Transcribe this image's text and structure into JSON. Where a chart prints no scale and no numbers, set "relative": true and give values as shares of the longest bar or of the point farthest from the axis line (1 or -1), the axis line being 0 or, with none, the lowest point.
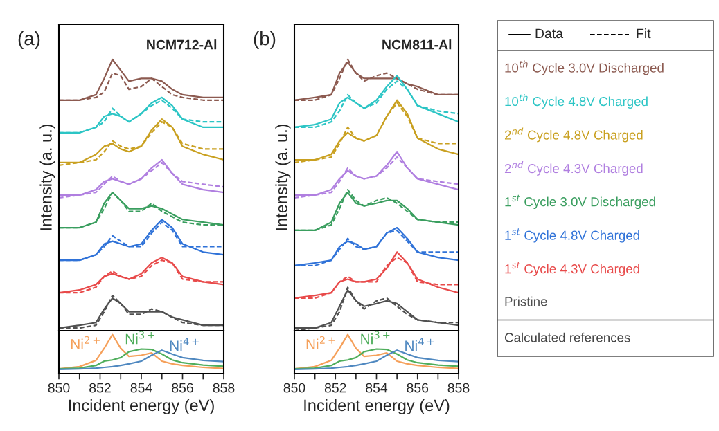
{
  "chart_data": [
    {
      "type": "line",
      "title": "(a)",
      "subtitle": "NCM712-Al",
      "ylabel": "Intensity (a. u.)",
      "relative": true,
      "xlim": [
        850,
        858
      ],
      "tick_labels": false,
      "marker": "none",
      "legend": false,
      "x": [
        850,
        851,
        851.8,
        852.2,
        852.6,
        853.0,
        853.4,
        854.0,
        854.5,
        855.0,
        855.5,
        856.0,
        857.0,
        858.0
      ],
      "series": [
        {
          "color": "#8c5a50",
          "line_style": "solid",
          "values": [
            0.85,
            0.85,
            0.87,
            0.93,
            1.0,
            0.96,
            0.92,
            0.93,
            0.93,
            0.92,
            0.89,
            0.87,
            0.86,
            0.86
          ]
        },
        {
          "color": "#8c5a50",
          "line_style": "dashed",
          "values": [
            0.85,
            0.85,
            0.86,
            0.88,
            0.95,
            0.94,
            0.89,
            0.9,
            0.93,
            0.9,
            0.87,
            0.86,
            0.85,
            0.85
          ]
        },
        {
          "color": "#2cc5c5",
          "line_style": "solid",
          "values": [
            0.73,
            0.73,
            0.75,
            0.79,
            0.8,
            0.79,
            0.77,
            0.8,
            0.84,
            0.86,
            0.83,
            0.78,
            0.75,
            0.75
          ]
        },
        {
          "color": "#2cc5c5",
          "line_style": "dashed",
          "values": [
            0.73,
            0.73,
            0.75,
            0.77,
            0.82,
            0.79,
            0.77,
            0.8,
            0.83,
            0.85,
            0.82,
            0.78,
            0.77,
            0.77
          ]
        },
        {
          "color": "#c9a020",
          "line_style": "solid",
          "values": [
            0.62,
            0.62,
            0.65,
            0.68,
            0.69,
            0.67,
            0.66,
            0.68,
            0.74,
            0.78,
            0.75,
            0.68,
            0.65,
            0.63
          ]
        },
        {
          "color": "#c9a020",
          "line_style": "dashed",
          "values": [
            0.61,
            0.62,
            0.63,
            0.66,
            0.7,
            0.68,
            0.67,
            0.68,
            0.73,
            0.77,
            0.75,
            0.69,
            0.67,
            0.67
          ]
        },
        {
          "color": "#b07fe0",
          "line_style": "solid",
          "values": [
            0.5,
            0.5,
            0.52,
            0.55,
            0.56,
            0.55,
            0.54,
            0.56,
            0.6,
            0.63,
            0.58,
            0.54,
            0.52,
            0.51
          ]
        },
        {
          "color": "#b07fe0",
          "line_style": "dashed",
          "values": [
            0.49,
            0.5,
            0.51,
            0.54,
            0.57,
            0.55,
            0.54,
            0.56,
            0.59,
            0.62,
            0.58,
            0.55,
            0.54,
            0.53
          ]
        },
        {
          "color": "#3a9e5f",
          "line_style": "solid",
          "values": [
            0.38,
            0.38,
            0.4,
            0.47,
            0.51,
            0.48,
            0.45,
            0.45,
            0.46,
            0.45,
            0.43,
            0.41,
            0.4,
            0.39
          ]
        },
        {
          "color": "#3a9e5f",
          "line_style": "dashed",
          "values": [
            0.38,
            0.38,
            0.4,
            0.45,
            0.51,
            0.48,
            0.44,
            0.44,
            0.47,
            0.44,
            0.42,
            0.4,
            0.39,
            0.39
          ]
        },
        {
          "color": "#2f72d8",
          "line_style": "solid",
          "values": [
            0.26,
            0.26,
            0.28,
            0.32,
            0.33,
            0.32,
            0.31,
            0.32,
            0.37,
            0.41,
            0.38,
            0.32,
            0.29,
            0.28
          ]
        },
        {
          "color": "#2f72d8",
          "line_style": "dashed",
          "values": [
            0.26,
            0.26,
            0.28,
            0.31,
            0.35,
            0.33,
            0.31,
            0.31,
            0.36,
            0.4,
            0.37,
            0.31,
            0.31,
            0.31
          ]
        },
        {
          "color": "#e84a4a",
          "line_style": "solid",
          "values": [
            0.14,
            0.15,
            0.17,
            0.2,
            0.21,
            0.2,
            0.19,
            0.21,
            0.25,
            0.27,
            0.25,
            0.2,
            0.18,
            0.17
          ]
        },
        {
          "color": "#e84a4a",
          "line_style": "dashed",
          "values": [
            0.14,
            0.14,
            0.16,
            0.2,
            0.22,
            0.2,
            0.19,
            0.2,
            0.24,
            0.26,
            0.25,
            0.19,
            0.18,
            0.18
          ]
        },
        {
          "color": "#505050",
          "line_style": "solid",
          "values": [
            0.01,
            0.02,
            0.03,
            0.08,
            0.12,
            0.1,
            0.07,
            0.07,
            0.07,
            0.07,
            0.05,
            0.04,
            0.02,
            0.02
          ]
        },
        {
          "color": "#505050",
          "line_style": "dashed",
          "values": [
            0.01,
            0.01,
            0.02,
            0.07,
            0.13,
            0.1,
            0.06,
            0.06,
            0.08,
            0.07,
            0.05,
            0.03,
            0.02,
            0.02
          ]
        }
      ]
    },
    {
      "type": "line",
      "xlabel": "Incident energy (eV)",
      "relative": true,
      "xlim": [
        850,
        858
      ],
      "tick_labels": "x",
      "marker": "none",
      "xticks": [
        850,
        {
          "value": 851,
          "label": null
        },
        852,
        {
          "value": 853,
          "label": null
        },
        854,
        {
          "value": 855,
          "label": null
        },
        856,
        {
          "value": 857,
          "label": null
        },
        858
      ],
      "x": [
        850,
        851,
        851.8,
        852.2,
        852.6,
        853.0,
        853.4,
        854.0,
        854.5,
        855.0,
        855.5,
        856.0,
        857.0,
        858.0
      ],
      "series": [
        {
          "name": "Ni$^{2+}$",
          "color": "#f5a05a",
          "values": [
            0.12,
            0.18,
            0.34,
            0.65,
            1.0,
            0.65,
            0.44,
            0.47,
            0.53,
            0.32,
            0.25,
            0.21,
            0.16,
            0.13
          ]
        },
        {
          "name": "Ni$^{3+}$",
          "color": "#4fae5c",
          "values": [
            0.12,
            0.14,
            0.21,
            0.32,
            0.35,
            0.41,
            0.56,
            0.63,
            0.62,
            0.5,
            0.35,
            0.28,
            0.22,
            0.19
          ]
        },
        {
          "name": "Ni$^{4+}$",
          "color": "#4f88c0",
          "values": [
            0.11,
            0.12,
            0.14,
            0.16,
            0.18,
            0.21,
            0.25,
            0.32,
            0.47,
            0.6,
            0.5,
            0.41,
            0.34,
            0.31
          ]
        }
      ]
    },
    {
      "type": "line",
      "title": "(b)",
      "subtitle": "NCM811-Al",
      "ylabel": "Intensity (a. u.)",
      "relative": true,
      "xlim": [
        850,
        858
      ],
      "tick_labels": false,
      "marker": "none",
      "legend": "right",
      "annotations": [
        "Data",
        "Fit",
        "Calculated references"
      ],
      "x": [
        850,
        851,
        851.8,
        852.2,
        852.6,
        853.0,
        853.4,
        854.0,
        854.5,
        855.0,
        855.5,
        856.0,
        857.0,
        858.0
      ],
      "series": [
        {
          "name": "10$^{th}$ Cycle 3.0V Discharged",
          "color": "#8c5a50",
          "line_style": "solid",
          "values": [
            0.85,
            0.86,
            0.87,
            0.95,
            0.99,
            0.95,
            0.93,
            0.93,
            0.93,
            0.93,
            0.91,
            0.9,
            0.87,
            0.87
          ]
        },
        {
          "color": "#8c5a50",
          "line_style": "dashed",
          "values": [
            0.85,
            0.85,
            0.87,
            0.93,
            1.0,
            0.95,
            0.92,
            0.94,
            0.95,
            0.93,
            0.91,
            0.89,
            0.87,
            0.87
          ]
        },
        {
          "name": "10$^{th}$ Cycle 4.8V Charged",
          "color": "#2cc5c5",
          "line_style": "solid",
          "values": [
            0.75,
            0.76,
            0.78,
            0.84,
            0.86,
            0.84,
            0.82,
            0.85,
            0.9,
            0.94,
            0.89,
            0.83,
            0.8,
            0.77
          ]
        },
        {
          "color": "#2cc5c5",
          "line_style": "dashed",
          "values": [
            0.75,
            0.75,
            0.77,
            0.81,
            0.87,
            0.84,
            0.82,
            0.84,
            0.89,
            0.92,
            0.89,
            0.83,
            0.81,
            0.8
          ]
        },
        {
          "name": "2$^{nd}$ Cycle 4.8V Charged",
          "color": "#c9a020",
          "line_style": "solid",
          "values": [
            0.63,
            0.63,
            0.65,
            0.7,
            0.73,
            0.71,
            0.7,
            0.72,
            0.79,
            0.85,
            0.8,
            0.71,
            0.67,
            0.65
          ]
        },
        {
          "color": "#c9a020",
          "line_style": "dashed",
          "values": [
            0.62,
            0.63,
            0.64,
            0.69,
            0.75,
            0.71,
            0.7,
            0.72,
            0.79,
            0.84,
            0.79,
            0.71,
            0.69,
            0.69
          ]
        },
        {
          "name": "2$^{nd}$ Cycle 4.3V Charged",
          "color": "#b07fe0",
          "line_style": "solid",
          "values": [
            0.5,
            0.5,
            0.52,
            0.56,
            0.59,
            0.57,
            0.56,
            0.57,
            0.61,
            0.66,
            0.6,
            0.56,
            0.54,
            0.52
          ]
        },
        {
          "color": "#b07fe0",
          "line_style": "dashed",
          "values": [
            0.49,
            0.5,
            0.51,
            0.55,
            0.6,
            0.57,
            0.56,
            0.57,
            0.6,
            0.64,
            0.6,
            0.56,
            0.55,
            0.54
          ]
        },
        {
          "name": "1$^{st}$ Cycle 3.0V Discharged",
          "color": "#3a9e5f",
          "line_style": "solid",
          "values": [
            0.37,
            0.37,
            0.4,
            0.47,
            0.51,
            0.47,
            0.46,
            0.47,
            0.48,
            0.48,
            0.45,
            0.41,
            0.4,
            0.39
          ]
        },
        {
          "color": "#3a9e5f",
          "line_style": "dashed",
          "values": [
            0.37,
            0.37,
            0.39,
            0.45,
            0.52,
            0.48,
            0.46,
            0.48,
            0.49,
            0.47,
            0.44,
            0.41,
            0.4,
            0.4
          ]
        },
        {
          "name": "1$^{st}$ Cycle 4.8V Charged",
          "color": "#2f72d8",
          "line_style": "solid",
          "values": [
            0.24,
            0.25,
            0.26,
            0.31,
            0.33,
            0.32,
            0.3,
            0.31,
            0.36,
            0.38,
            0.34,
            0.29,
            0.27,
            0.26
          ]
        },
        {
          "color": "#2f72d8",
          "line_style": "dashed",
          "values": [
            0.24,
            0.24,
            0.26,
            0.3,
            0.34,
            0.31,
            0.3,
            0.31,
            0.36,
            0.37,
            0.33,
            0.29,
            0.29,
            0.29
          ]
        },
        {
          "name": "1$^{st}$ Cycle 4.3V Charged",
          "color": "#e84a4a",
          "line_style": "solid",
          "values": [
            0.12,
            0.13,
            0.14,
            0.18,
            0.19,
            0.18,
            0.18,
            0.19,
            0.23,
            0.29,
            0.25,
            0.19,
            0.16,
            0.14
          ]
        },
        {
          "color": "#e84a4a",
          "line_style": "dashed",
          "values": [
            0.12,
            0.12,
            0.14,
            0.18,
            0.2,
            0.18,
            0.18,
            0.18,
            0.24,
            0.27,
            0.25,
            0.18,
            0.17,
            0.17
          ]
        },
        {
          "name": "Pristine",
          "color": "#505050",
          "line_style": "solid",
          "values": [
            0.01,
            0.01,
            0.03,
            0.09,
            0.15,
            0.11,
            0.09,
            0.1,
            0.11,
            0.1,
            0.07,
            0.04,
            0.03,
            0.02
          ]
        },
        {
          "color": "#505050",
          "line_style": "dashed",
          "values": [
            0.0,
            0.01,
            0.02,
            0.07,
            0.16,
            0.11,
            0.08,
            0.11,
            0.12,
            0.09,
            0.06,
            0.04,
            0.03,
            0.03
          ]
        }
      ]
    },
    {
      "type": "line",
      "xlabel": "Incident energy (eV)",
      "relative": true,
      "xlim": [
        850,
        858
      ],
      "tick_labels": "x",
      "marker": "none",
      "xticks": [
        850,
        {
          "value": 851,
          "label": null
        },
        852,
        {
          "value": 853,
          "label": null
        },
        854,
        {
          "value": 855,
          "label": null
        },
        856,
        {
          "value": 857,
          "label": null
        },
        858
      ],
      "x": [
        850,
        851,
        851.8,
        852.2,
        852.6,
        853.0,
        853.4,
        854.0,
        854.5,
        855.0,
        855.5,
        856.0,
        857.0,
        858.0
      ],
      "series": [
        {
          "name": "Ni$^{2+}$",
          "color": "#f5a05a",
          "values": [
            0.12,
            0.18,
            0.34,
            0.65,
            1.0,
            0.65,
            0.44,
            0.47,
            0.53,
            0.32,
            0.25,
            0.21,
            0.16,
            0.13
          ]
        },
        {
          "name": "Ni$^{3+}$",
          "color": "#4fae5c",
          "values": [
            0.12,
            0.14,
            0.21,
            0.32,
            0.35,
            0.41,
            0.56,
            0.63,
            0.62,
            0.5,
            0.35,
            0.28,
            0.22,
            0.19
          ]
        },
        {
          "name": "Ni$^{4+}$",
          "color": "#4f88c0",
          "values": [
            0.11,
            0.12,
            0.14,
            0.16,
            0.18,
            0.21,
            0.25,
            0.32,
            0.47,
            0.6,
            0.5,
            0.41,
            0.34,
            0.31
          ]
        }
      ]
    }
  ]
}
